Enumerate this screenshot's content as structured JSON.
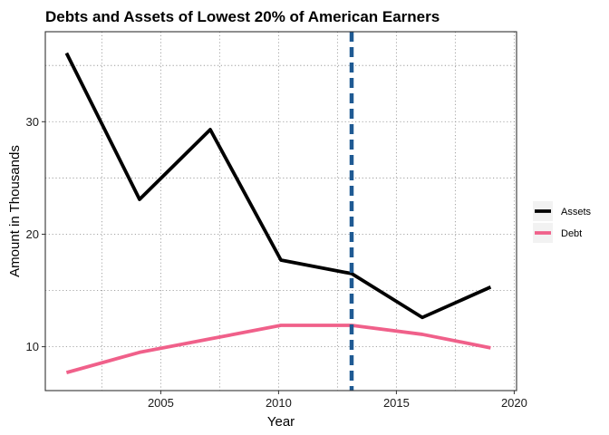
{
  "chart_data": {
    "type": "line",
    "title": "Debts and Assets of Lowest 20% of American Earners",
    "xlabel": "Year",
    "ylabel": "Amount in Thousands",
    "xlim": [
      2000.1,
      2020.1
    ],
    "ylim": [
      6.1,
      38
    ],
    "x_major_ticks": [
      2005,
      2010,
      2015,
      2020
    ],
    "x_minor_ticks": [
      2002.5,
      2007.5,
      2012.5,
      2017.5
    ],
    "y_major_ticks": [
      10,
      20,
      30
    ],
    "y_minor_ticks": [
      15,
      25,
      35
    ],
    "grid": true,
    "legend_position": "right",
    "vline": {
      "x": 2013.1,
      "color": "#1f5a93",
      "style": "dashed"
    },
    "series": [
      {
        "name": "Assets",
        "color": "#000000",
        "x": [
          2001,
          2004.1,
          2007.1,
          2010.1,
          2013.1,
          2016.1,
          2019
        ],
        "values": [
          36.1,
          23.1,
          29.3,
          17.7,
          16.5,
          12.6,
          15.3
        ]
      },
      {
        "name": "Debt",
        "color": "#f0608a",
        "x": [
          2001,
          2004.1,
          2007.1,
          2010.1,
          2013.1,
          2016.1,
          2019
        ],
        "values": [
          7.7,
          9.5,
          10.7,
          11.9,
          11.9,
          11.1,
          9.9
        ]
      }
    ]
  }
}
